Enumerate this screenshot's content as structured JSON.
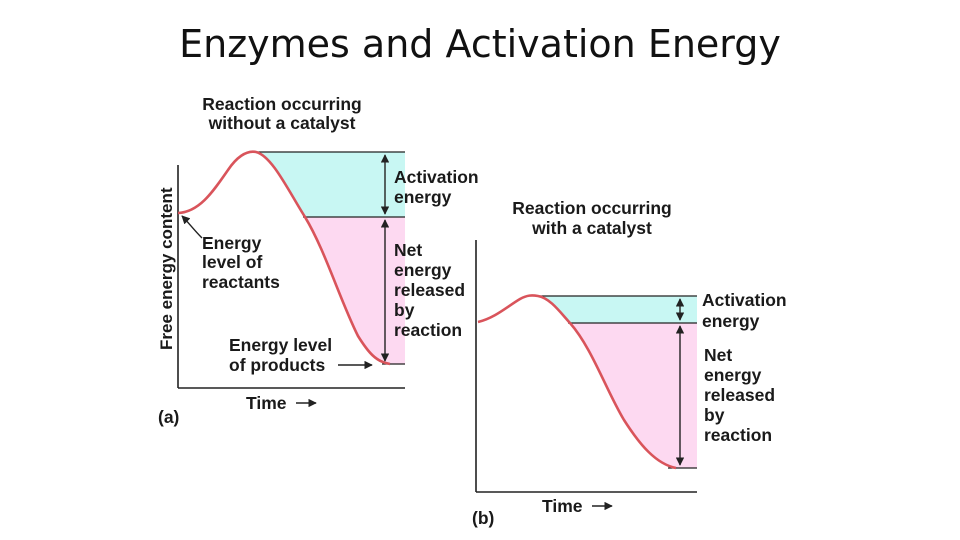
{
  "slide": {
    "title": "Enzymes and Activation Energy"
  },
  "colors": {
    "curve": "#d9545b",
    "activation_fill": "#c8f7f3",
    "released_fill": "#fdd9f1",
    "axis": "#222222"
  },
  "panel_a": {
    "tag": "(a)",
    "heading_line1": "Reaction occurring",
    "heading_line2": "without a catalyst",
    "y_axis_label": "Free energy content",
    "x_axis_label": "Time",
    "activation_line1": "Activation",
    "activation_line2": "energy",
    "net_line1": "Net",
    "net_line2": "energy",
    "net_line3": "released",
    "net_line4": "by",
    "net_line5": "reaction",
    "reactants_line1": "Energy",
    "reactants_line2": "level of",
    "reactants_line3": "reactants",
    "products_line1": "Energy level",
    "products_line2": "of products"
  },
  "panel_b": {
    "tag": "(b)",
    "heading_line1": "Reaction occurring",
    "heading_line2": "with a catalyst",
    "x_axis_label": "Time",
    "activation_line1": "Activation",
    "activation_line2": "energy",
    "net_line1": "Net",
    "net_line2": "energy",
    "net_line3": "released",
    "net_line4": "by",
    "net_line5": "reaction"
  }
}
